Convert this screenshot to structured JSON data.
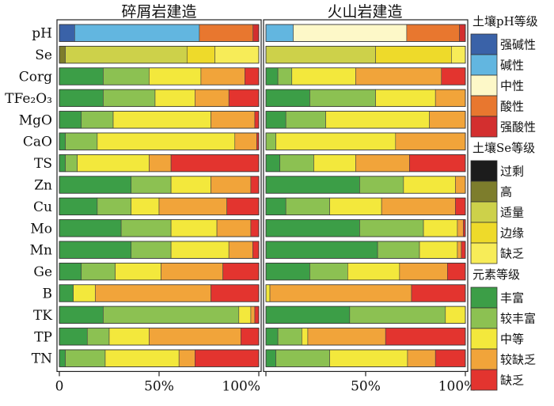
{
  "chart_data": {
    "type": "bar",
    "stacked": "percent-horizontal",
    "panels": [
      {
        "title": "碎屑岩建造"
      },
      {
        "title": "火山岩建造"
      }
    ],
    "rows": [
      "pH",
      "Se",
      "Corg",
      "TFe₂O₃",
      "MgO",
      "CaO",
      "TS",
      "Zn",
      "Cu",
      "Mo",
      "Mn",
      "Ge",
      "B",
      "TK",
      "TP",
      "TN"
    ],
    "xticks": [
      "0",
      "50%",
      "100%"
    ],
    "xlim": [
      0,
      100
    ],
    "legend": [
      {
        "title": "土壤pH等级",
        "items": [
          {
            "label": "强碱性",
            "color": "#3a62a8"
          },
          {
            "label": "碱性",
            "color": "#62b6e0"
          },
          {
            "label": "中性",
            "color": "#fdf8c8"
          },
          {
            "label": "酸性",
            "color": "#e8772f"
          },
          {
            "label": "强酸性",
            "color": "#d32f2f"
          }
        ]
      },
      {
        "title": "土壤Se等级",
        "items": [
          {
            "label": "过剩",
            "color": "#1c1c1c"
          },
          {
            "label": "高",
            "color": "#7d7d2c"
          },
          {
            "label": "适量",
            "color": "#cdd14a"
          },
          {
            "label": "边缘",
            "color": "#eeda2a"
          },
          {
            "label": "缺乏",
            "color": "#f7ec58"
          }
        ]
      },
      {
        "title": "元素等级",
        "items": [
          {
            "label": "丰富",
            "color": "#3c9e47"
          },
          {
            "label": "较丰富",
            "color": "#8cc152"
          },
          {
            "label": "中等",
            "color": "#f3e83c"
          },
          {
            "label": "较缺乏",
            "color": "#f1a43a"
          },
          {
            "label": "缺乏",
            "color": "#e3342f"
          }
        ]
      }
    ],
    "series": [
      {
        "row": "pH",
        "scale": "pH",
        "panel1": [
          8,
          65,
          0,
          28,
          3
        ],
        "panel2": [
          0,
          14,
          58,
          27,
          3
        ]
      },
      {
        "row": "Se",
        "scale": "Se",
        "panel1": [
          0,
          3,
          61,
          14,
          22
        ],
        "panel2": [
          0,
          0,
          55,
          38,
          7
        ]
      },
      {
        "row": "Corg",
        "scale": "element",
        "panel1": [
          22,
          23,
          26,
          22,
          7
        ],
        "panel2": [
          6,
          7,
          32,
          43,
          12
        ]
      },
      {
        "row": "TFe₂O₃",
        "scale": "element",
        "panel1": [
          22,
          26,
          20,
          17,
          15
        ],
        "panel2": [
          22,
          33,
          30,
          15,
          0
        ]
      },
      {
        "row": "MgO",
        "scale": "element",
        "panel1": [
          11,
          16,
          49,
          22,
          2
        ],
        "panel2": [
          10,
          20,
          52,
          18,
          0
        ]
      },
      {
        "row": "CaO",
        "scale": "element",
        "panel1": [
          3,
          16,
          69,
          11,
          1
        ],
        "panel2": [
          0,
          5,
          60,
          35,
          0
        ]
      },
      {
        "row": "TS",
        "scale": "element",
        "panel1": [
          3,
          6,
          36,
          11,
          44
        ],
        "panel2": [
          7,
          17,
          21,
          27,
          28
        ]
      },
      {
        "row": "Zn",
        "scale": "element",
        "panel1": [
          36,
          20,
          20,
          20,
          4
        ],
        "panel2": [
          47,
          22,
          26,
          5,
          0
        ]
      },
      {
        "row": "Cu",
        "scale": "element",
        "panel1": [
          19,
          17,
          14,
          34,
          16
        ],
        "panel2": [
          10,
          22,
          26,
          37,
          5
        ]
      },
      {
        "row": "Mo",
        "scale": "element",
        "panel1": [
          31,
          25,
          23,
          17,
          4
        ],
        "panel2": [
          47,
          32,
          17,
          3,
          1
        ]
      },
      {
        "row": "Mn",
        "scale": "element",
        "panel1": [
          36,
          20,
          29,
          12,
          3
        ],
        "panel2": [
          56,
          21,
          19,
          2,
          2
        ]
      },
      {
        "row": "Ge",
        "scale": "element",
        "panel1": [
          11,
          17,
          23,
          31,
          18
        ],
        "panel2": [
          22,
          19,
          26,
          24,
          9
        ]
      },
      {
        "row": "B",
        "scale": "element",
        "panel1": [
          7,
          0,
          11,
          58,
          24
        ],
        "panel2": [
          0,
          0,
          2,
          71,
          27
        ]
      },
      {
        "row": "TK",
        "scale": "element",
        "panel1": [
          22,
          68,
          6,
          2,
          2
        ],
        "panel2": [
          42,
          48,
          10,
          0,
          0
        ]
      },
      {
        "row": "TP",
        "scale": "element",
        "panel1": [
          14,
          11,
          20,
          46,
          9
        ],
        "panel2": [
          6,
          12,
          3,
          39,
          40
        ]
      },
      {
        "row": "TN",
        "scale": "element",
        "panel1": [
          3,
          20,
          37,
          8,
          32
        ],
        "panel2": [
          5,
          27,
          39,
          14,
          15
        ]
      }
    ]
  }
}
